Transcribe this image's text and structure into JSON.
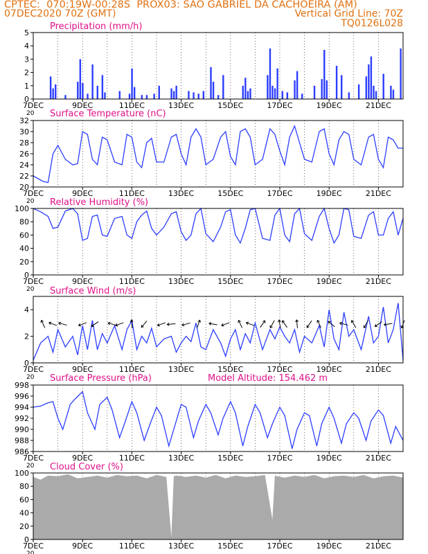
{
  "header": {
    "line1_left": "CPTEC:  070:19W-00:28S  PROX03: SAO GABRIEL DA CACHOEIRA (AM)",
    "line2_left": "07DEC2020 70Z (GMT)",
    "line2_right": "Vertical Grid Line: 70Z",
    "line3_right": "TQ0126L028"
  },
  "colors": {
    "header": "#e07010",
    "title": "#e0108a",
    "series": "#2b3dff",
    "cloud": "#aaaaaa",
    "frame": "#000000"
  },
  "x_axis": {
    "start_day": 7,
    "end_day": 22,
    "tick_labels": [
      "7DEC",
      "9DEC",
      "11DEC",
      "13DEC",
      "15DEC",
      "17DEC",
      "19DEC",
      "21DEC"
    ],
    "tick_days": [
      7,
      9,
      11,
      13,
      15,
      17,
      19,
      21
    ],
    "first_label_under": "20"
  },
  "chart_data": [
    {
      "type": "bar",
      "title": "Precipitation (mm/h)",
      "ylim": [
        0,
        5
      ],
      "yticks": [
        "0",
        "1",
        "2",
        "3",
        "4",
        "5"
      ],
      "x_days": [
        7.7,
        7.8,
        7.9,
        8.3,
        8.8,
        8.9,
        9.0,
        9.2,
        9.4,
        9.6,
        9.8,
        9.9,
        10.5,
        10.9,
        11.0,
        11.1,
        11.4,
        11.6,
        11.9,
        12.1,
        12.6,
        12.7,
        12.8,
        13.3,
        13.5,
        13.7,
        13.9,
        14.2,
        14.3,
        14.5,
        14.7,
        15.5,
        15.6,
        15.7,
        15.8,
        16.5,
        16.6,
        16.7,
        16.8,
        16.9,
        17.1,
        17.3,
        17.6,
        17.7,
        17.9,
        18.4,
        18.7,
        18.8,
        18.9,
        19.3,
        19.5,
        19.8,
        20.2,
        20.5,
        20.6,
        20.7,
        20.8,
        20.9,
        21.2,
        21.5,
        21.6,
        21.9
      ],
      "values": [
        1.7,
        0.8,
        1.1,
        0.3,
        1.3,
        3.0,
        1.2,
        0.4,
        2.6,
        1.0,
        1.8,
        0.5,
        0.6,
        0.4,
        2.3,
        0.9,
        0.3,
        0.3,
        0.4,
        1.0,
        0.8,
        0.6,
        1.0,
        0.6,
        0.5,
        0.4,
        0.6,
        2.4,
        1.3,
        0.3,
        1.8,
        1.0,
        1.6,
        0.6,
        0.8,
        1.8,
        3.8,
        1.0,
        0.8,
        2.3,
        0.6,
        0.5,
        1.4,
        2.1,
        0.4,
        1.0,
        1.5,
        3.7,
        1.4,
        2.5,
        1.8,
        0.5,
        1.1,
        1.7,
        2.6,
        3.2,
        1.0,
        0.6,
        1.9,
        1.0,
        0.7,
        3.8
      ]
    },
    {
      "type": "line",
      "title": "Surface Temperature (nC)",
      "ylim": [
        20,
        32
      ],
      "yticks": [
        "20",
        "22",
        "24",
        "26",
        "28",
        "30",
        "32"
      ],
      "x_days": [
        7.0,
        7.2,
        7.4,
        7.6,
        7.8,
        8.0,
        8.3,
        8.6,
        8.8,
        9.0,
        9.2,
        9.4,
        9.6,
        9.8,
        10.0,
        10.3,
        10.6,
        10.8,
        11.0,
        11.2,
        11.4,
        11.6,
        11.8,
        12.0,
        12.3,
        12.6,
        12.8,
        13.0,
        13.2,
        13.4,
        13.6,
        13.8,
        14.0,
        14.3,
        14.6,
        14.8,
        15.0,
        15.2,
        15.4,
        15.6,
        15.8,
        16.0,
        16.3,
        16.6,
        16.8,
        17.0,
        17.2,
        17.4,
        17.6,
        17.8,
        18.0,
        18.3,
        18.6,
        18.8,
        19.0,
        19.2,
        19.4,
        19.6,
        19.8,
        20.0,
        20.3,
        20.6,
        20.8,
        21.0,
        21.2,
        21.4,
        21.6,
        21.8,
        22.0
      ],
      "values": [
        22.0,
        21.5,
        21.0,
        20.8,
        26.0,
        27.5,
        25.0,
        24.0,
        24.2,
        30.0,
        29.5,
        25.0,
        24.0,
        29.0,
        28.5,
        24.5,
        24.0,
        29.5,
        29.0,
        24.5,
        23.5,
        28.0,
        28.8,
        24.5,
        24.5,
        29.0,
        29.5,
        26.0,
        24.0,
        29.0,
        30.5,
        29.0,
        24.0,
        25.0,
        29.0,
        30.0,
        25.5,
        24.0,
        30.0,
        30.5,
        29.0,
        24.0,
        25.0,
        30.5,
        29.5,
        26.5,
        24.0,
        29.0,
        31.0,
        28.0,
        25.0,
        24.5,
        30.0,
        30.5,
        26.0,
        24.0,
        28.5,
        30.0,
        29.5,
        25.0,
        24.0,
        29.0,
        29.5,
        25.0,
        23.5,
        29.0,
        28.5,
        27.0,
        27.0
      ]
    },
    {
      "type": "line",
      "title": "Relative Humidity (%)",
      "ylim": [
        0,
        100
      ],
      "yticks": [
        "0",
        "20",
        "40",
        "60",
        "80",
        "100"
      ],
      "x_days": [
        7.0,
        7.3,
        7.6,
        7.8,
        8.0,
        8.3,
        8.6,
        8.8,
        9.0,
        9.2,
        9.4,
        9.6,
        9.8,
        10.0,
        10.3,
        10.6,
        10.8,
        11.0,
        11.2,
        11.4,
        11.6,
        11.8,
        12.0,
        12.3,
        12.6,
        12.8,
        13.0,
        13.2,
        13.4,
        13.6,
        13.8,
        14.0,
        14.3,
        14.6,
        14.8,
        15.0,
        15.2,
        15.4,
        15.6,
        15.8,
        16.0,
        16.3,
        16.6,
        16.8,
        17.0,
        17.2,
        17.4,
        17.6,
        17.8,
        18.0,
        18.3,
        18.6,
        18.8,
        19.0,
        19.2,
        19.4,
        19.6,
        19.8,
        20.0,
        20.3,
        20.6,
        20.8,
        21.0,
        21.2,
        21.4,
        21.6,
        21.8,
        22.0
      ],
      "values": [
        100,
        95,
        88,
        70,
        72,
        96,
        100,
        92,
        52,
        55,
        88,
        90,
        60,
        58,
        85,
        88,
        60,
        55,
        80,
        90,
        96,
        70,
        60,
        72,
        92,
        95,
        65,
        52,
        60,
        92,
        100,
        62,
        50,
        72,
        95,
        98,
        60,
        48,
        70,
        98,
        100,
        55,
        52,
        90,
        100,
        60,
        50,
        92,
        100,
        62,
        52,
        88,
        100,
        70,
        48,
        60,
        100,
        98,
        58,
        55,
        90,
        95,
        60,
        60,
        85,
        95,
        60,
        85
      ]
    },
    {
      "type": "line",
      "title": "Surface Wind (m/s)",
      "ylim": [
        0,
        5
      ],
      "yticks": [
        "0",
        "2",
        "4"
      ],
      "x_days": [
        7.0,
        7.3,
        7.6,
        7.8,
        8.0,
        8.3,
        8.6,
        8.8,
        9.0,
        9.2,
        9.4,
        9.6,
        9.8,
        10.0,
        10.3,
        10.6,
        10.8,
        11.0,
        11.2,
        11.4,
        11.6,
        11.8,
        12.0,
        12.3,
        12.6,
        12.8,
        13.0,
        13.2,
        13.4,
        13.6,
        13.8,
        14.0,
        14.3,
        14.6,
        14.8,
        15.0,
        15.2,
        15.4,
        15.6,
        15.8,
        16.0,
        16.3,
        16.6,
        16.8,
        17.0,
        17.2,
        17.4,
        17.6,
        17.8,
        18.0,
        18.3,
        18.6,
        18.8,
        19.0,
        19.2,
        19.4,
        19.6,
        19.8,
        20.0,
        20.3,
        20.6,
        20.8,
        21.0,
        21.2,
        21.4,
        21.6,
        21.8,
        22.0
      ],
      "values": [
        0.2,
        1.5,
        2.0,
        0.8,
        2.5,
        1.2,
        2.0,
        0.6,
        2.8,
        1.0,
        3.2,
        1.0,
        2.2,
        1.5,
        2.8,
        1.0,
        2.5,
        3.2,
        1.0,
        2.0,
        1.5,
        2.6,
        1.2,
        1.8,
        2.0,
        0.8,
        1.5,
        2.0,
        1.6,
        3.0,
        1.2,
        1.0,
        2.5,
        1.5,
        0.5,
        1.8,
        2.5,
        1.0,
        2.2,
        1.5,
        3.0,
        1.0,
        2.5,
        1.8,
        2.7,
        2.0,
        1.5,
        2.5,
        0.8,
        2.0,
        1.5,
        2.8,
        1.2,
        4.0,
        1.8,
        1.0,
        3.8,
        2.0,
        2.5,
        1.0,
        3.5,
        1.5,
        2.0,
        4.2,
        1.5,
        2.5,
        4.5,
        0.2
      ],
      "arrow_days": [
        7.4,
        7.8,
        8.2,
        9.0,
        9.5,
        10.2,
        10.5,
        11.0,
        11.5,
        12.2,
        12.6,
        13.2,
        13.7,
        14.3,
        14.8,
        15.4,
        15.8,
        16.3,
        16.7,
        17.0,
        17.2,
        17.7,
        18.2,
        18.6,
        19.1,
        19.6,
        20.0,
        20.5,
        21.0,
        21.4,
        22.0
      ],
      "arrow_dirs_deg": [
        115,
        160,
        165,
        200,
        215,
        165,
        200,
        95,
        230,
        200,
        185,
        195,
        70,
        170,
        200,
        115,
        160,
        55,
        240,
        100,
        125,
        95,
        235,
        115,
        140,
        165,
        120,
        240,
        215,
        190,
        250
      ]
    },
    {
      "type": "line",
      "title": "Surface Pressure (hPa)",
      "annotation": "Model Altitude: 154.462 m",
      "ylim": [
        986,
        998
      ],
      "yticks": [
        "986",
        "988",
        "990",
        "992",
        "994",
        "996",
        "998"
      ],
      "x_days": [
        7.0,
        7.3,
        7.6,
        7.8,
        8.0,
        8.2,
        8.5,
        8.7,
        9.0,
        9.2,
        9.5,
        9.7,
        10.0,
        10.2,
        10.5,
        10.7,
        11.0,
        11.2,
        11.5,
        11.7,
        12.0,
        12.2,
        12.5,
        12.7,
        13.0,
        13.2,
        13.5,
        13.7,
        14.0,
        14.2,
        14.5,
        14.7,
        15.0,
        15.2,
        15.5,
        15.7,
        16.0,
        16.2,
        16.5,
        16.7,
        17.0,
        17.2,
        17.5,
        17.7,
        18.0,
        18.2,
        18.5,
        18.7,
        19.0,
        19.2,
        19.5,
        19.7,
        20.0,
        20.2,
        20.5,
        20.7,
        21.0,
        21.2,
        21.5,
        21.7,
        22.0
      ],
      "values": [
        994.0,
        994.2,
        994.8,
        995.0,
        992.0,
        990.0,
        994.5,
        995.5,
        996.8,
        993.0,
        990.0,
        994.5,
        995.8,
        993.5,
        988.5,
        991.0,
        995.0,
        993.0,
        988.0,
        990.5,
        994.0,
        992.5,
        987.0,
        990.0,
        994.5,
        994.0,
        988.5,
        991.5,
        994.5,
        993.0,
        989.0,
        992.0,
        995.0,
        993.0,
        987.0,
        990.5,
        994.5,
        993.0,
        988.5,
        991.0,
        994.0,
        992.5,
        986.5,
        990.0,
        993.0,
        992.5,
        987.0,
        991.0,
        994.0,
        992.0,
        987.5,
        991.0,
        993.0,
        992.0,
        988.0,
        991.5,
        993.5,
        992.5,
        987.5,
        990.5,
        988.0
      ]
    },
    {
      "type": "area",
      "title": "Cloud Cover (%)",
      "ylim": [
        0,
        100
      ],
      "yticks": [
        "0",
        "20",
        "40",
        "60",
        "80",
        "100"
      ],
      "x_days": [
        7.0,
        7.3,
        7.6,
        8.0,
        8.4,
        8.8,
        9.2,
        9.6,
        10.0,
        10.4,
        10.8,
        11.2,
        11.6,
        12.0,
        12.4,
        12.6,
        12.7,
        12.8,
        13.2,
        13.6,
        14.0,
        14.4,
        14.8,
        15.2,
        15.6,
        16.0,
        16.4,
        16.7,
        16.8,
        16.9,
        17.2,
        17.6,
        18.0,
        18.4,
        18.8,
        19.2,
        19.6,
        20.0,
        20.4,
        20.8,
        21.2,
        21.6,
        22.0
      ],
      "values": [
        94,
        90,
        96,
        95,
        98,
        92,
        94,
        96,
        93,
        97,
        95,
        96,
        92,
        97,
        94,
        4,
        95,
        96,
        94,
        96,
        93,
        97,
        92,
        96,
        94,
        95,
        97,
        30,
        96,
        95,
        93,
        96,
        94,
        97,
        92,
        95,
        96,
        94,
        97,
        92,
        95,
        96,
        93
      ]
    }
  ]
}
